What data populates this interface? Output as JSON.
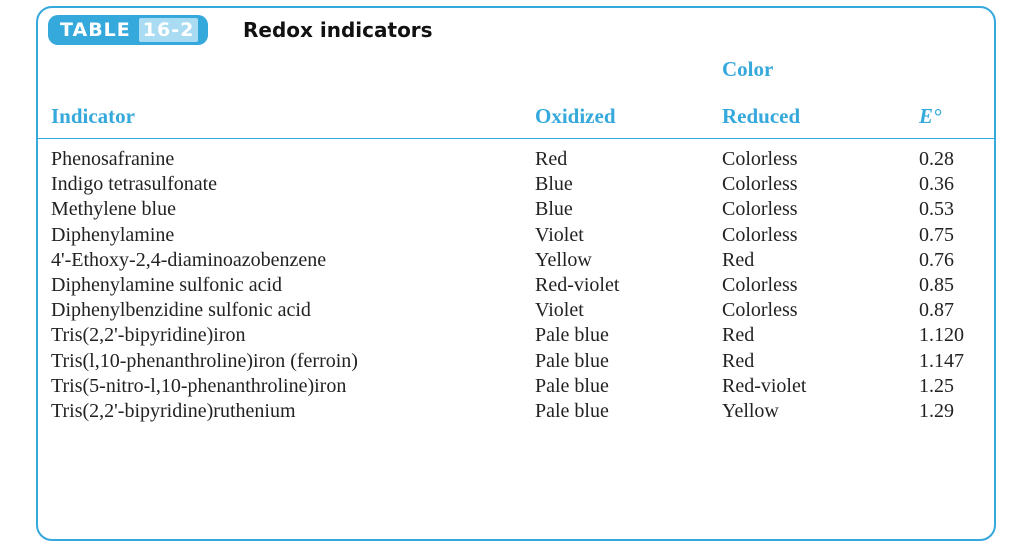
{
  "table": {
    "label_word": "TABLE",
    "label_number": "16-2",
    "caption": "Redox indicators",
    "group_header": "Color",
    "columns": {
      "indicator": "Indicator",
      "oxidized": "Oxidized",
      "reduced": "Reduced",
      "e": "E°"
    },
    "rows": [
      {
        "indicator": "Phenosafranine",
        "oxidized": "Red",
        "reduced": "Colorless",
        "e": "0.28"
      },
      {
        "indicator": "Indigo tetrasulfonate",
        "oxidized": "Blue",
        "reduced": "Colorless",
        "e": "0.36"
      },
      {
        "indicator": "Methylene blue",
        "oxidized": "Blue",
        "reduced": "Colorless",
        "e": "0.53"
      },
      {
        "indicator": "Diphenylamine",
        "oxidized": "Violet",
        "reduced": "Colorless",
        "e": "0.75"
      },
      {
        "indicator": "4'-Ethoxy-2,4-diaminoazobenzene",
        "oxidized": "Yellow",
        "reduced": "Red",
        "e": "0.76"
      },
      {
        "indicator": "Diphenylamine sulfonic acid",
        "oxidized": "Red-violet",
        "reduced": "Colorless",
        "e": "0.85"
      },
      {
        "indicator": "Diphenylbenzidine sulfonic acid",
        "oxidized": "Violet",
        "reduced": "Colorless",
        "e": "0.87"
      },
      {
        "indicator": "Tris(2,2'-bipyridine)iron",
        "oxidized": "Pale blue",
        "reduced": "Red",
        "e": "1.120"
      },
      {
        "indicator": "Tris(l,10-phenanthroline)iron (ferroin)",
        "oxidized": "Pale blue",
        "reduced": "Red",
        "e": "1.147"
      },
      {
        "indicator": "Tris(5-nitro-l,10-phenanthroline)iron",
        "oxidized": "Pale blue",
        "reduced": "Red-violet",
        "e": "1.25"
      },
      {
        "indicator": "Tris(2,2'-bipyridine)ruthenium",
        "oxidized": "Pale blue",
        "reduced": "Yellow",
        "e": "1.29"
      }
    ]
  },
  "colors": {
    "accent": "#35a8dc",
    "badge_number_bg": "#a9dcf2",
    "text": "#222222"
  }
}
